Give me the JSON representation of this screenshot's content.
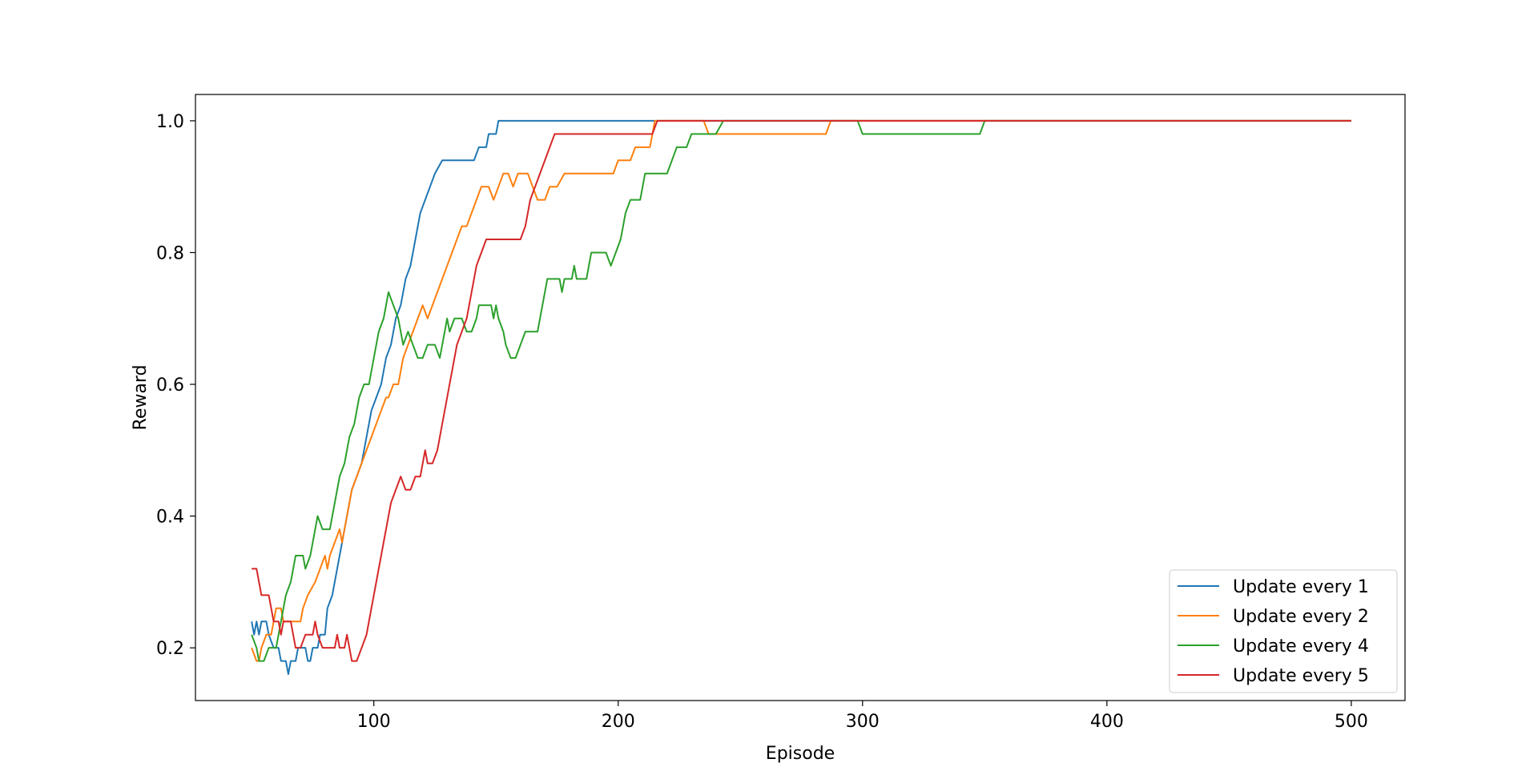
{
  "chart_data": {
    "type": "line",
    "title": "",
    "xlabel": "Episode",
    "ylabel": "Reward",
    "xlim": [
      27,
      522
    ],
    "ylim": [
      0.12,
      1.04
    ],
    "xticks": [
      100,
      200,
      300,
      400,
      500
    ],
    "xtick_labels": [
      "100",
      "200",
      "300",
      "400",
      "500"
    ],
    "yticks": [
      0.2,
      0.4,
      0.6,
      0.8,
      1.0
    ],
    "ytick_labels": [
      "0.2",
      "0.4",
      "0.6",
      "0.8",
      "1.0"
    ],
    "grid": false,
    "legend": {
      "position": "lower-right"
    },
    "series": [
      {
        "name": "Update every 1",
        "color": "#1f77b4",
        "points": [
          [
            50,
            0.24
          ],
          [
            51,
            0.22
          ],
          [
            52,
            0.24
          ],
          [
            53,
            0.22
          ],
          [
            54,
            0.24
          ],
          [
            56,
            0.24
          ],
          [
            57,
            0.22
          ],
          [
            59,
            0.2
          ],
          [
            61,
            0.2
          ],
          [
            62,
            0.18
          ],
          [
            64,
            0.18
          ],
          [
            65,
            0.16
          ],
          [
            66,
            0.18
          ],
          [
            68,
            0.18
          ],
          [
            69,
            0.2
          ],
          [
            72,
            0.2
          ],
          [
            73,
            0.18
          ],
          [
            74,
            0.18
          ],
          [
            75,
            0.2
          ],
          [
            77,
            0.2
          ],
          [
            78,
            0.22
          ],
          [
            80,
            0.22
          ],
          [
            81,
            0.26
          ],
          [
            83,
            0.28
          ],
          [
            85,
            0.32
          ],
          [
            87,
            0.36
          ],
          [
            89,
            0.4
          ],
          [
            91,
            0.44
          ],
          [
            93,
            0.46
          ],
          [
            95,
            0.48
          ],
          [
            97,
            0.52
          ],
          [
            99,
            0.56
          ],
          [
            101,
            0.58
          ],
          [
            103,
            0.6
          ],
          [
            105,
            0.64
          ],
          [
            107,
            0.66
          ],
          [
            109,
            0.7
          ],
          [
            111,
            0.72
          ],
          [
            113,
            0.76
          ],
          [
            115,
            0.78
          ],
          [
            117,
            0.82
          ],
          [
            119,
            0.86
          ],
          [
            121,
            0.88
          ],
          [
            123,
            0.9
          ],
          [
            125,
            0.92
          ],
          [
            128,
            0.94
          ],
          [
            132,
            0.94
          ],
          [
            141,
            0.94
          ],
          [
            143,
            0.96
          ],
          [
            146,
            0.96
          ],
          [
            147,
            0.98
          ],
          [
            150,
            0.98
          ],
          [
            151,
            1.0
          ],
          [
            200,
            1.0
          ],
          [
            300,
            1.0
          ],
          [
            400,
            1.0
          ],
          [
            500,
            1.0
          ]
        ]
      },
      {
        "name": "Update every 2",
        "color": "#ff7f0e",
        "points": [
          [
            50,
            0.2
          ],
          [
            52,
            0.18
          ],
          [
            53,
            0.18
          ],
          [
            54,
            0.2
          ],
          [
            56,
            0.22
          ],
          [
            58,
            0.22
          ],
          [
            60,
            0.26
          ],
          [
            62,
            0.26
          ],
          [
            63,
            0.24
          ],
          [
            70,
            0.24
          ],
          [
            71,
            0.26
          ],
          [
            73,
            0.28
          ],
          [
            76,
            0.3
          ],
          [
            78,
            0.32
          ],
          [
            80,
            0.34
          ],
          [
            81,
            0.32
          ],
          [
            82,
            0.34
          ],
          [
            84,
            0.36
          ],
          [
            86,
            0.38
          ],
          [
            87,
            0.36
          ],
          [
            89,
            0.4
          ],
          [
            91,
            0.44
          ],
          [
            93,
            0.46
          ],
          [
            95,
            0.48
          ],
          [
            97,
            0.5
          ],
          [
            99,
            0.52
          ],
          [
            101,
            0.54
          ],
          [
            103,
            0.56
          ],
          [
            105,
            0.58
          ],
          [
            106,
            0.58
          ],
          [
            108,
            0.6
          ],
          [
            110,
            0.6
          ],
          [
            112,
            0.64
          ],
          [
            114,
            0.66
          ],
          [
            116,
            0.68
          ],
          [
            118,
            0.7
          ],
          [
            120,
            0.72
          ],
          [
            122,
            0.7
          ],
          [
            124,
            0.72
          ],
          [
            126,
            0.74
          ],
          [
            128,
            0.76
          ],
          [
            130,
            0.78
          ],
          [
            132,
            0.8
          ],
          [
            134,
            0.82
          ],
          [
            136,
            0.84
          ],
          [
            138,
            0.84
          ],
          [
            140,
            0.86
          ],
          [
            142,
            0.88
          ],
          [
            144,
            0.9
          ],
          [
            147,
            0.9
          ],
          [
            149,
            0.88
          ],
          [
            151,
            0.9
          ],
          [
            153,
            0.92
          ],
          [
            155,
            0.92
          ],
          [
            157,
            0.9
          ],
          [
            159,
            0.92
          ],
          [
            163,
            0.92
          ],
          [
            165,
            0.9
          ],
          [
            167,
            0.88
          ],
          [
            170,
            0.88
          ],
          [
            172,
            0.9
          ],
          [
            175,
            0.9
          ],
          [
            178,
            0.92
          ],
          [
            198,
            0.92
          ],
          [
            200,
            0.94
          ],
          [
            205,
            0.94
          ],
          [
            207,
            0.96
          ],
          [
            213,
            0.96
          ],
          [
            215,
            1.0
          ],
          [
            235,
            1.0
          ],
          [
            237,
            0.98
          ],
          [
            285,
            0.98
          ],
          [
            287,
            1.0
          ],
          [
            300,
            1.0
          ],
          [
            400,
            1.0
          ],
          [
            500,
            1.0
          ]
        ]
      },
      {
        "name": "Update every 4",
        "color": "#2ca02c",
        "points": [
          [
            50,
            0.22
          ],
          [
            52,
            0.2
          ],
          [
            53,
            0.18
          ],
          [
            55,
            0.18
          ],
          [
            57,
            0.2
          ],
          [
            60,
            0.2
          ],
          [
            62,
            0.24
          ],
          [
            64,
            0.28
          ],
          [
            66,
            0.3
          ],
          [
            68,
            0.34
          ],
          [
            71,
            0.34
          ],
          [
            72,
            0.32
          ],
          [
            74,
            0.34
          ],
          [
            76,
            0.38
          ],
          [
            77,
            0.4
          ],
          [
            79,
            0.38
          ],
          [
            82,
            0.38
          ],
          [
            84,
            0.42
          ],
          [
            86,
            0.46
          ],
          [
            88,
            0.48
          ],
          [
            90,
            0.52
          ],
          [
            92,
            0.54
          ],
          [
            94,
            0.58
          ],
          [
            96,
            0.6
          ],
          [
            98,
            0.6
          ],
          [
            100,
            0.64
          ],
          [
            102,
            0.68
          ],
          [
            104,
            0.7
          ],
          [
            106,
            0.74
          ],
          [
            108,
            0.72
          ],
          [
            110,
            0.7
          ],
          [
            112,
            0.66
          ],
          [
            114,
            0.68
          ],
          [
            116,
            0.66
          ],
          [
            118,
            0.64
          ],
          [
            120,
            0.64
          ],
          [
            122,
            0.66
          ],
          [
            125,
            0.66
          ],
          [
            127,
            0.64
          ],
          [
            130,
            0.7
          ],
          [
            131,
            0.68
          ],
          [
            133,
            0.7
          ],
          [
            136,
            0.7
          ],
          [
            138,
            0.68
          ],
          [
            140,
            0.68
          ],
          [
            142,
            0.7
          ],
          [
            143,
            0.72
          ],
          [
            148,
            0.72
          ],
          [
            149,
            0.7
          ],
          [
            150,
            0.72
          ],
          [
            151,
            0.7
          ],
          [
            153,
            0.68
          ],
          [
            154,
            0.66
          ],
          [
            156,
            0.64
          ],
          [
            158,
            0.64
          ],
          [
            160,
            0.66
          ],
          [
            162,
            0.68
          ],
          [
            167,
            0.68
          ],
          [
            169,
            0.72
          ],
          [
            171,
            0.76
          ],
          [
            176,
            0.76
          ],
          [
            177,
            0.74
          ],
          [
            178,
            0.76
          ],
          [
            181,
            0.76
          ],
          [
            182,
            0.78
          ],
          [
            183,
            0.76
          ],
          [
            187,
            0.76
          ],
          [
            189,
            0.8
          ],
          [
            195,
            0.8
          ],
          [
            197,
            0.78
          ],
          [
            199,
            0.8
          ],
          [
            201,
            0.82
          ],
          [
            203,
            0.86
          ],
          [
            205,
            0.88
          ],
          [
            209,
            0.88
          ],
          [
            211,
            0.92
          ],
          [
            220,
            0.92
          ],
          [
            222,
            0.94
          ],
          [
            224,
            0.96
          ],
          [
            228,
            0.96
          ],
          [
            230,
            0.98
          ],
          [
            240,
            0.98
          ],
          [
            243,
            1.0
          ],
          [
            298,
            1.0
          ],
          [
            300,
            0.98
          ],
          [
            348,
            0.98
          ],
          [
            350,
            1.0
          ],
          [
            400,
            1.0
          ],
          [
            500,
            1.0
          ]
        ]
      },
      {
        "name": "Update every 5",
        "color": "#d62728",
        "points": [
          [
            50,
            0.32
          ],
          [
            52,
            0.32
          ],
          [
            53,
            0.3
          ],
          [
            54,
            0.28
          ],
          [
            57,
            0.28
          ],
          [
            59,
            0.24
          ],
          [
            61,
            0.24
          ],
          [
            62,
            0.22
          ],
          [
            63,
            0.24
          ],
          [
            66,
            0.24
          ],
          [
            68,
            0.2
          ],
          [
            70,
            0.2
          ],
          [
            72,
            0.22
          ],
          [
            75,
            0.22
          ],
          [
            76,
            0.24
          ],
          [
            77,
            0.22
          ],
          [
            79,
            0.2
          ],
          [
            84,
            0.2
          ],
          [
            85,
            0.22
          ],
          [
            86,
            0.2
          ],
          [
            88,
            0.2
          ],
          [
            89,
            0.22
          ],
          [
            90,
            0.2
          ],
          [
            91,
            0.18
          ],
          [
            93,
            0.18
          ],
          [
            95,
            0.2
          ],
          [
            97,
            0.22
          ],
          [
            99,
            0.26
          ],
          [
            101,
            0.3
          ],
          [
            103,
            0.34
          ],
          [
            105,
            0.38
          ],
          [
            107,
            0.42
          ],
          [
            109,
            0.44
          ],
          [
            111,
            0.46
          ],
          [
            113,
            0.44
          ],
          [
            115,
            0.44
          ],
          [
            117,
            0.46
          ],
          [
            119,
            0.46
          ],
          [
            121,
            0.5
          ],
          [
            122,
            0.48
          ],
          [
            124,
            0.48
          ],
          [
            126,
            0.5
          ],
          [
            128,
            0.54
          ],
          [
            130,
            0.58
          ],
          [
            132,
            0.62
          ],
          [
            134,
            0.66
          ],
          [
            136,
            0.68
          ],
          [
            138,
            0.7
          ],
          [
            140,
            0.74
          ],
          [
            142,
            0.78
          ],
          [
            144,
            0.8
          ],
          [
            146,
            0.82
          ],
          [
            160,
            0.82
          ],
          [
            162,
            0.84
          ],
          [
            164,
            0.88
          ],
          [
            166,
            0.9
          ],
          [
            168,
            0.92
          ],
          [
            170,
            0.94
          ],
          [
            172,
            0.96
          ],
          [
            174,
            0.98
          ],
          [
            214,
            0.98
          ],
          [
            216,
            1.0
          ],
          [
            300,
            1.0
          ],
          [
            400,
            1.0
          ],
          [
            500,
            1.0
          ]
        ]
      }
    ]
  }
}
